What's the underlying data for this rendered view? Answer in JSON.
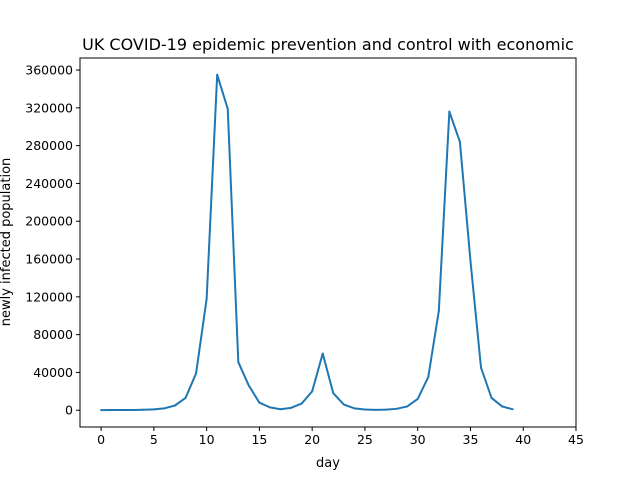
{
  "chart_data": {
    "type": "line",
    "title": "UK COVID-19 epidemic prevention and control with economic",
    "xlabel": "day",
    "ylabel": "newly infected population",
    "xlim": [
      -2,
      45
    ],
    "ylim": [
      -17750,
      372750
    ],
    "xticks": [
      0,
      5,
      10,
      15,
      20,
      25,
      30,
      35,
      40,
      45
    ],
    "yticks": [
      0,
      40000,
      80000,
      120000,
      160000,
      200000,
      240000,
      280000,
      320000,
      360000
    ],
    "grid": false,
    "series": [
      {
        "color": "#1f77b4",
        "x": [
          0,
          1,
          2,
          3,
          4,
          5,
          6,
          7,
          8,
          9,
          10,
          11,
          12,
          13,
          14,
          15,
          16,
          17,
          18,
          19,
          20,
          21,
          22,
          23,
          24,
          25,
          26,
          27,
          28,
          29,
          30,
          31,
          32,
          33,
          34,
          35,
          36,
          37,
          38,
          39
        ],
        "y": [
          150,
          180,
          200,
          300,
          500,
          900,
          2000,
          5000,
          13000,
          39000,
          118000,
          355000,
          319000,
          51000,
          26000,
          8000,
          3000,
          1000,
          2500,
          7000,
          20000,
          60000,
          18000,
          6000,
          2000,
          800,
          400,
          600,
          1500,
          4000,
          12000,
          35000,
          105000,
          316000,
          284000,
          158000,
          45000,
          13000,
          4000,
          1000
        ]
      }
    ]
  }
}
